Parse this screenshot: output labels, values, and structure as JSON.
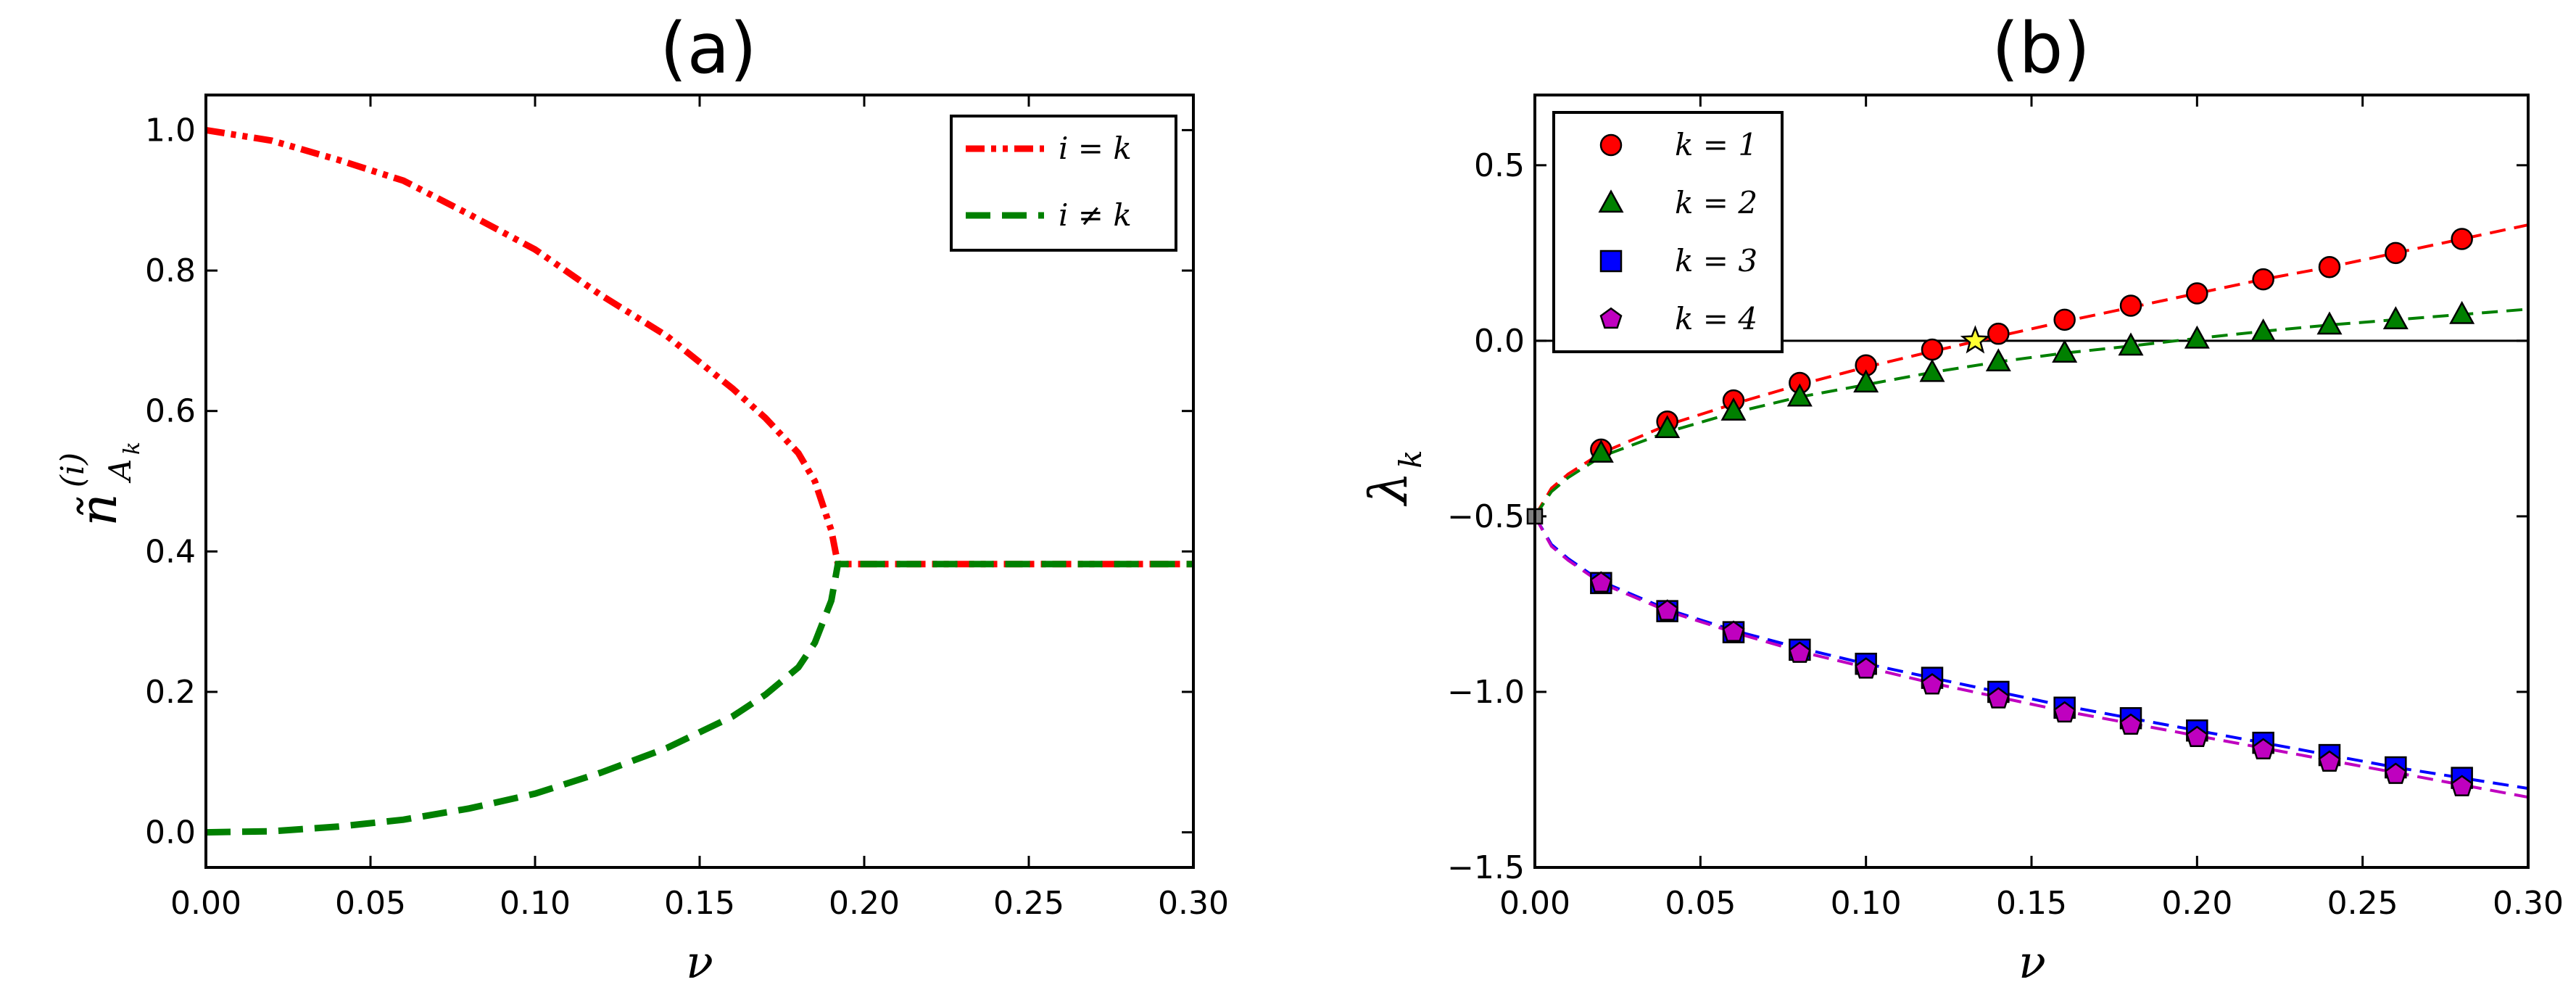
{
  "chart_data": [
    {
      "id": "a",
      "type": "line",
      "title": "(a)",
      "xlabel": "ν",
      "ylabel": "ñ",
      "ylabel_superscript": "(i)",
      "ylabel_subscript": "A",
      "ylabel_subsubscript": "k",
      "xlim": [
        0,
        0.3
      ],
      "ylim": [
        -0.05,
        1.05
      ],
      "xticks": [
        "0.00",
        "0.05",
        "0.10",
        "0.15",
        "0.20",
        "0.25",
        "0.30"
      ],
      "xtick_values": [
        0,
        0.05,
        0.1,
        0.15,
        0.2,
        0.25,
        0.3
      ],
      "yticks": [
        "0.0",
        "0.2",
        "0.4",
        "0.6",
        "0.8",
        "1.0"
      ],
      "ytick_values": [
        0,
        0.2,
        0.4,
        0.6,
        0.8,
        1.0
      ],
      "legend_position": "top-right",
      "series": [
        {
          "name": "i = k",
          "color": "#ff0000",
          "style": "dash-dot-dot",
          "x": [
            0,
            0.02,
            0.04,
            0.06,
            0.08,
            0.1,
            0.12,
            0.14,
            0.16,
            0.17,
            0.18,
            0.185,
            0.19,
            0.192,
            0.3
          ],
          "y": [
            1.0,
            0.985,
            0.958,
            0.928,
            0.88,
            0.83,
            0.765,
            0.707,
            0.632,
            0.59,
            0.54,
            0.5,
            0.43,
            0.382,
            0.382
          ]
        },
        {
          "name": "i ≠ k",
          "color": "#008000",
          "style": "dash",
          "x": [
            0,
            0.02,
            0.04,
            0.06,
            0.08,
            0.1,
            0.12,
            0.14,
            0.16,
            0.17,
            0.18,
            0.185,
            0.19,
            0.192,
            0.3
          ],
          "y": [
            0.0,
            0.0015,
            0.008,
            0.018,
            0.034,
            0.055,
            0.085,
            0.12,
            0.165,
            0.196,
            0.235,
            0.27,
            0.33,
            0.382,
            0.382
          ]
        }
      ]
    },
    {
      "id": "b",
      "type": "scatter",
      "title": "(b)",
      "xlabel": "ν",
      "ylabel": "λ",
      "ylabel_subscript": "k",
      "xlim": [
        0,
        0.3
      ],
      "ylim": [
        -1.5,
        0.7
      ],
      "xticks": [
        "0.00",
        "0.05",
        "0.10",
        "0.15",
        "0.20",
        "0.25",
        "0.30"
      ],
      "xtick_values": [
        0,
        0.05,
        0.1,
        0.15,
        0.2,
        0.25,
        0.3
      ],
      "yticks": [
        "0.5",
        "0.0",
        "−0.5",
        "−1.0",
        "−1.5"
      ],
      "ytick_values": [
        0.5,
        0,
        -0.5,
        -1.0,
        -1.5
      ],
      "hline": 0,
      "legend_position": "top-left",
      "star": {
        "x": 0.133,
        "y": 0.0,
        "color": "#ffff33"
      },
      "series": [
        {
          "name": "k = 1",
          "color": "#ff0000",
          "line_color": "#ff0000",
          "marker": "circle",
          "x": [
            0.02,
            0.04,
            0.06,
            0.08,
            0.1,
            0.12,
            0.14,
            0.16,
            0.18,
            0.2,
            0.22,
            0.24,
            0.26,
            0.28
          ],
          "y": [
            -0.31,
            -0.23,
            -0.17,
            -0.12,
            -0.07,
            -0.025,
            0.02,
            0.06,
            0.1,
            0.135,
            0.175,
            0.21,
            0.25,
            0.29
          ],
          "curve_x": [
            0,
            0.005,
            0.01,
            0.02,
            0.04,
            0.06,
            0.08,
            0.1,
            0.12,
            0.14,
            0.16,
            0.18,
            0.2,
            0.22,
            0.24,
            0.26,
            0.28,
            0.3
          ],
          "curve_y": [
            -0.5,
            -0.42,
            -0.38,
            -0.32,
            -0.24,
            -0.18,
            -0.125,
            -0.075,
            -0.03,
            0.013,
            0.055,
            0.095,
            0.135,
            0.175,
            0.21,
            0.25,
            0.29,
            0.33
          ]
        },
        {
          "name": "k = 2",
          "color": "#008000",
          "line_color": "#008000",
          "marker": "triangle",
          "x": [
            0.02,
            0.04,
            0.06,
            0.08,
            0.1,
            0.12,
            0.14,
            0.16,
            0.18,
            0.2,
            0.22,
            0.24,
            0.26,
            0.28
          ],
          "y": [
            -0.32,
            -0.25,
            -0.2,
            -0.16,
            -0.12,
            -0.09,
            -0.06,
            -0.035,
            -0.015,
            0.005,
            0.025,
            0.045,
            0.06,
            0.075
          ],
          "curve_x": [
            0,
            0.005,
            0.01,
            0.02,
            0.04,
            0.06,
            0.08,
            0.1,
            0.12,
            0.14,
            0.16,
            0.18,
            0.2,
            0.22,
            0.24,
            0.26,
            0.28,
            0.3
          ],
          "curve_y": [
            -0.5,
            -0.43,
            -0.39,
            -0.33,
            -0.26,
            -0.205,
            -0.16,
            -0.125,
            -0.09,
            -0.06,
            -0.035,
            -0.015,
            0.007,
            0.027,
            0.045,
            0.06,
            0.075,
            0.09
          ]
        },
        {
          "name": "k = 3",
          "color": "#0000ff",
          "line_color": "#0000ff",
          "marker": "square",
          "x": [
            0.02,
            0.04,
            0.06,
            0.08,
            0.1,
            0.12,
            0.14,
            0.16,
            0.18,
            0.2,
            0.22,
            0.24,
            0.26,
            0.28
          ],
          "y": [
            -0.69,
            -0.77,
            -0.83,
            -0.88,
            -0.92,
            -0.96,
            -1.0,
            -1.045,
            -1.075,
            -1.11,
            -1.145,
            -1.18,
            -1.215,
            -1.245
          ],
          "curve_x": [
            0,
            0.005,
            0.01,
            0.02,
            0.04,
            0.06,
            0.08,
            0.1,
            0.12,
            0.14,
            0.16,
            0.18,
            0.2,
            0.22,
            0.24,
            0.26,
            0.28,
            0.3
          ],
          "curve_y": [
            -0.5,
            -0.58,
            -0.62,
            -0.685,
            -0.765,
            -0.825,
            -0.875,
            -0.92,
            -0.96,
            -1.0,
            -1.04,
            -1.075,
            -1.11,
            -1.145,
            -1.18,
            -1.215,
            -1.245,
            -1.275
          ]
        },
        {
          "name": "k = 4",
          "color": "#bf00bf",
          "line_color": "#bf00bf",
          "marker": "pentagon",
          "x": [
            0.02,
            0.04,
            0.06,
            0.08,
            0.1,
            0.12,
            0.14,
            0.16,
            0.18,
            0.2,
            0.22,
            0.24,
            0.26,
            0.28
          ],
          "y": [
            -0.69,
            -0.77,
            -0.83,
            -0.89,
            -0.935,
            -0.98,
            -1.02,
            -1.06,
            -1.095,
            -1.13,
            -1.165,
            -1.2,
            -1.235,
            -1.27
          ],
          "curve_x": [
            0,
            0.005,
            0.01,
            0.02,
            0.04,
            0.06,
            0.08,
            0.1,
            0.12,
            0.14,
            0.16,
            0.18,
            0.2,
            0.22,
            0.24,
            0.26,
            0.28,
            0.3
          ],
          "curve_y": [
            -0.5,
            -0.585,
            -0.625,
            -0.69,
            -0.77,
            -0.83,
            -0.885,
            -0.93,
            -0.975,
            -1.015,
            -1.055,
            -1.09,
            -1.125,
            -1.16,
            -1.195,
            -1.23,
            -1.265,
            -1.3
          ]
        }
      ]
    }
  ]
}
